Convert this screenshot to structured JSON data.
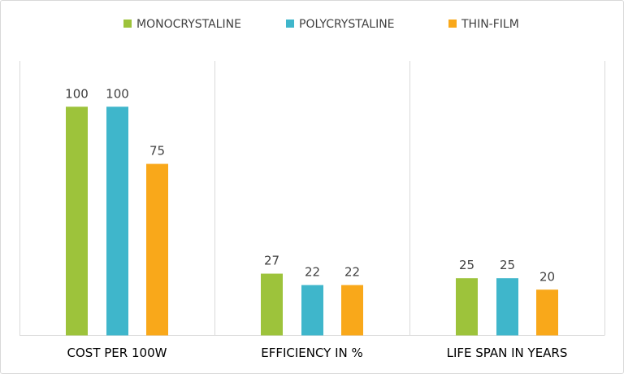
{
  "chart_data": {
    "type": "bar",
    "categories": [
      "COST PER 100W",
      "EFFICIENCY IN %",
      "LIFE SPAN IN YEARS"
    ],
    "series": [
      {
        "name": "MONOCRYSTALINE",
        "values": [
          100,
          27,
          25
        ],
        "color": "#9DC33B"
      },
      {
        "name": "POLYCRYSTALINE",
        "values": [
          100,
          22,
          25
        ],
        "color": "#3FB6CB"
      },
      {
        "name": "THIN-FILM",
        "values": [
          75,
          22,
          20
        ],
        "color": "#F9A81A"
      }
    ],
    "title": "",
    "xlabel": "",
    "ylabel": "",
    "ylim": [
      0,
      120
    ],
    "y_axis_visible": false,
    "data_labels": true,
    "grid": "vertical category separators",
    "legend": "top"
  }
}
